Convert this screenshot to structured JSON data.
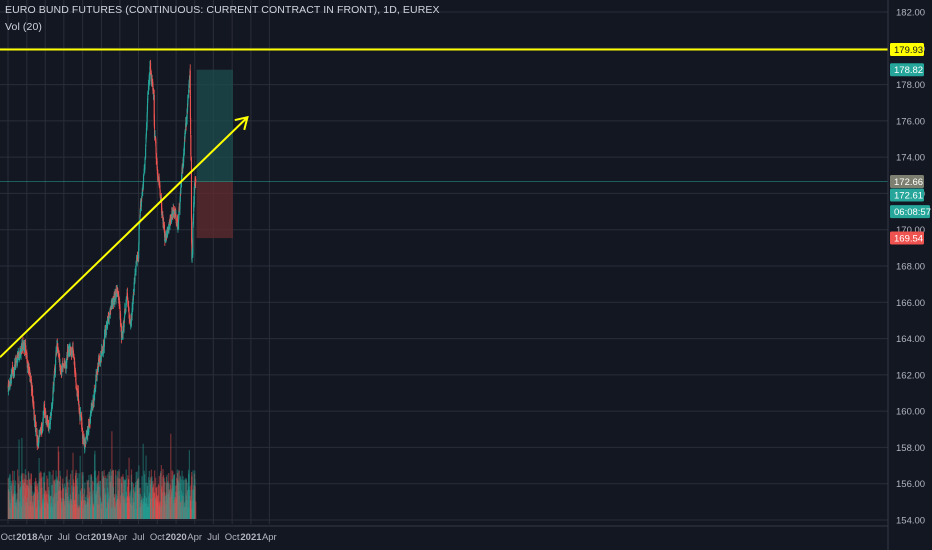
{
  "header": {
    "title": "EURO BUND FUTURES (CONTINUOUS: CURRENT CONTRACT IN FRONT), 1D, EUREX",
    "indicator": "Vol (20)"
  },
  "colors": {
    "background": "#131722",
    "grid": "#2a2e39",
    "up": "#26a69a",
    "down": "#ef5350",
    "annotation": "#ffff00",
    "profit_zone": "#1e4d4d",
    "loss_zone": "#5c2a2e"
  },
  "chart_data": {
    "type": "candlestick",
    "instrument": "EURO BUND FUTURES (CONTINUOUS: CURRENT CONTRACT IN FRONT)",
    "interval": "1D",
    "exchange": "EUREX",
    "x_ticks": [
      "Oct",
      "2018",
      "Apr",
      "Jul",
      "Oct",
      "2019",
      "Apr",
      "Jul",
      "Oct",
      "2020",
      "Apr",
      "Jul",
      "Oct",
      "2021",
      "Apr"
    ],
    "y_ticks": [
      "182.00",
      "180.00",
      "178.00",
      "176.00",
      "174.00",
      "172.00",
      "170.00",
      "168.00",
      "166.00",
      "164.00",
      "162.00",
      "160.00",
      "158.00",
      "156.00",
      "154.00"
    ],
    "ylim": [
      154,
      182
    ],
    "price_path": [
      {
        "date": "2017-10-01",
        "price": 161.5
      },
      {
        "date": "2017-11-15",
        "price": 163.0
      },
      {
        "date": "2017-12-20",
        "price": 163.8
      },
      {
        "date": "2018-01-15",
        "price": 162.2
      },
      {
        "date": "2018-02-10",
        "price": 159.5
      },
      {
        "date": "2018-02-25",
        "price": 158.2
      },
      {
        "date": "2018-03-25",
        "price": 160.0
      },
      {
        "date": "2018-04-20",
        "price": 159.0
      },
      {
        "date": "2018-05-29",
        "price": 163.5
      },
      {
        "date": "2018-06-20",
        "price": 162.0
      },
      {
        "date": "2018-07-15",
        "price": 163.0
      },
      {
        "date": "2018-08-15",
        "price": 163.5
      },
      {
        "date": "2018-09-15",
        "price": 160.0
      },
      {
        "date": "2018-10-08",
        "price": 158.0
      },
      {
        "date": "2018-11-20",
        "price": 160.5
      },
      {
        "date": "2018-12-20",
        "price": 162.8
      },
      {
        "date": "2019-02-15",
        "price": 165.5
      },
      {
        "date": "2019-03-20",
        "price": 166.8
      },
      {
        "date": "2019-04-10",
        "price": 164.2
      },
      {
        "date": "2019-05-05",
        "price": 166.2
      },
      {
        "date": "2019-05-25",
        "price": 165.0
      },
      {
        "date": "2019-06-15",
        "price": 167.5
      },
      {
        "date": "2019-07-01",
        "price": 168.6
      },
      {
        "date": "2019-07-05",
        "price": 170.5
      },
      {
        "date": "2019-08-01",
        "price": 173.5
      },
      {
        "date": "2019-08-15",
        "price": 177.0
      },
      {
        "date": "2019-08-28",
        "price": 179.0
      },
      {
        "date": "2019-09-12",
        "price": 177.8
      },
      {
        "date": "2019-09-18",
        "price": 175.2
      },
      {
        "date": "2019-10-10",
        "price": 172.5
      },
      {
        "date": "2019-11-08",
        "price": 169.6
      },
      {
        "date": "2019-12-15",
        "price": 171.0
      },
      {
        "date": "2020-01-10",
        "price": 170.5
      },
      {
        "date": "2020-02-10",
        "price": 174.5
      },
      {
        "date": "2020-03-09",
        "price": 178.5
      },
      {
        "date": "2020-03-18",
        "price": 168.3
      },
      {
        "date": "2020-03-30",
        "price": 172.5
      },
      {
        "date": "2020-04-06",
        "price": 172.61
      }
    ],
    "volume_series": {
      "name": "Vol (20)",
      "relative_range": [
        0.1,
        0.5
      ]
    },
    "annotations": {
      "horizontal_line": {
        "price": "179.93"
      },
      "trend_line": {
        "start": {
          "date": "2017-10-01",
          "price": 163.4
        },
        "end": {
          "date": "2020-12-15",
          "price": 176.2
        },
        "arrow": true
      },
      "position": {
        "start_date": "2020-04-10",
        "end_date": "2020-10-05",
        "target": "178.82",
        "entry": "172.66",
        "stop": "169.54"
      }
    },
    "price_tags": [
      {
        "label": "179.93",
        "price": 179.93,
        "color": "#ffff00",
        "text_color": "#131722"
      },
      {
        "label": "178.82",
        "price": 178.82,
        "color": "#26a69a",
        "text_color": "#ffffff"
      },
      {
        "label": "172.66",
        "price": 172.66,
        "color": "#7d8070",
        "text_color": "#ffffff"
      },
      {
        "label": "172.61",
        "price": 172.61,
        "color": "#26a69a",
        "text_color": "#ffffff"
      },
      {
        "label": "06:08:57",
        "price": 171.0,
        "color": "#26a69a",
        "text_color": "#ffffff"
      },
      {
        "label": "169.54",
        "price": 169.54,
        "color": "#ef5350",
        "text_color": "#ffffff"
      }
    ]
  }
}
